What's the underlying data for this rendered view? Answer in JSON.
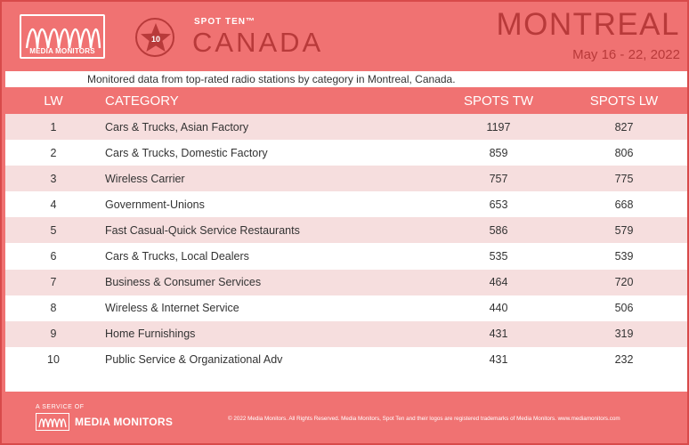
{
  "header": {
    "logo_text": "MEDIA MONITORS",
    "badge_number": "10",
    "product_label": "SPOT TEN™",
    "country": "CANADA",
    "city": "MONTREAL",
    "date_range": "May 16 - 22, 2022"
  },
  "table": {
    "subtitle": "Monitored data from top-rated radio stations by category in Montreal, Canada.",
    "columns": {
      "lw": "LW",
      "category": "CATEGORY",
      "spots_tw": "SPOTS TW",
      "spots_lw": "SPOTS LW"
    },
    "rows": [
      {
        "lw": "1",
        "category": "Cars & Trucks, Asian Factory",
        "spots_tw": "1197",
        "spots_lw": "827"
      },
      {
        "lw": "2",
        "category": "Cars & Trucks, Domestic Factory",
        "spots_tw": "859",
        "spots_lw": "806"
      },
      {
        "lw": "3",
        "category": "Wireless Carrier",
        "spots_tw": "757",
        "spots_lw": "775"
      },
      {
        "lw": "4",
        "category": "Government-Unions",
        "spots_tw": "653",
        "spots_lw": "668"
      },
      {
        "lw": "5",
        "category": "Fast Casual-Quick Service Restaurants",
        "spots_tw": "586",
        "spots_lw": "579"
      },
      {
        "lw": "6",
        "category": "Cars & Trucks, Local Dealers",
        "spots_tw": "535",
        "spots_lw": "539"
      },
      {
        "lw": "7",
        "category": "Business & Consumer Services",
        "spots_tw": "464",
        "spots_lw": "720"
      },
      {
        "lw": "8",
        "category": "Wireless & Internet Service",
        "spots_tw": "440",
        "spots_lw": "506"
      },
      {
        "lw": "9",
        "category": "Home Furnishings",
        "spots_tw": "431",
        "spots_lw": "319"
      },
      {
        "lw": "10",
        "category": "Public Service & Organizational Adv",
        "spots_tw": "431",
        "spots_lw": "232"
      }
    ]
  },
  "footer": {
    "service_of": "A SERVICE OF",
    "brand": "MEDIA MONITORS",
    "copyright": "© 2022 Media Monitors. All Rights Reserved. Media Monitors, Spot Ten and their logos are registered trademarks of Media Monitors. www.mediamonitors.com"
  },
  "colors": {
    "background": "#f07272",
    "accent": "#b83a3a",
    "row_shade": "#f6dede"
  },
  "icons": {
    "logo": "waveform-logo-icon",
    "badge": "star-badge-icon"
  }
}
